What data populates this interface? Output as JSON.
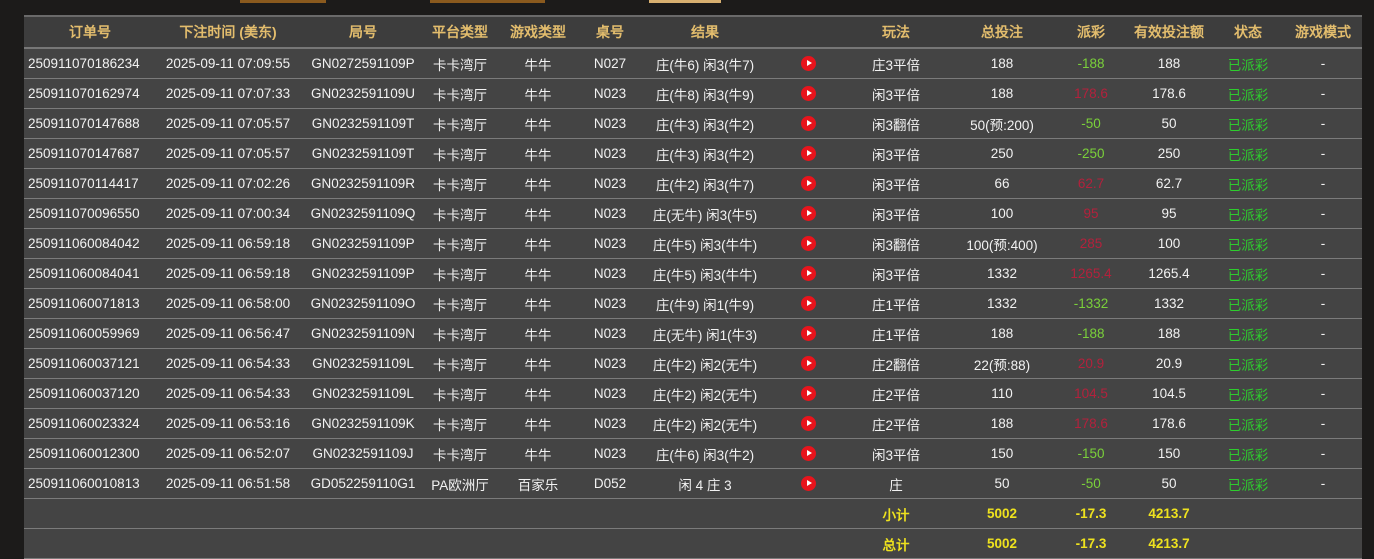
{
  "columns": [
    "订单号",
    "下注时间 (美东)",
    "局号",
    "平台类型",
    "游戏类型",
    "桌号",
    "结果",
    "",
    "玩法",
    "总投注",
    "派彩",
    "有效投注额",
    "状态",
    "游戏模式"
  ],
  "rows": [
    {
      "order": "250911070186234",
      "time": "2025-09-11 07:09:55",
      "round": "GN0272591109P",
      "platform": "卡卡湾厅",
      "game": "牛牛",
      "table": "N027",
      "result": "庄(牛6) 闲3(牛7)",
      "play": "庄3平倍",
      "bet": "188",
      "payout": "-188",
      "payout_sign": "neg",
      "valid": "188",
      "status": "已派彩",
      "mode": "-"
    },
    {
      "order": "250911070162974",
      "time": "2025-09-11 07:07:33",
      "round": "GN0232591109U",
      "platform": "卡卡湾厅",
      "game": "牛牛",
      "table": "N023",
      "result": "庄(牛8) 闲3(牛9)",
      "play": "闲3平倍",
      "bet": "188",
      "payout": "178.6",
      "payout_sign": "pos",
      "valid": "178.6",
      "status": "已派彩",
      "mode": "-"
    },
    {
      "order": "250911070147688",
      "time": "2025-09-11 07:05:57",
      "round": "GN0232591109T",
      "platform": "卡卡湾厅",
      "game": "牛牛",
      "table": "N023",
      "result": "庄(牛3) 闲3(牛2)",
      "play": "闲3翻倍",
      "bet": "50(预:200)",
      "payout": "-50",
      "payout_sign": "neg",
      "valid": "50",
      "status": "已派彩",
      "mode": "-"
    },
    {
      "order": "250911070147687",
      "time": "2025-09-11 07:05:57",
      "round": "GN0232591109T",
      "platform": "卡卡湾厅",
      "game": "牛牛",
      "table": "N023",
      "result": "庄(牛3) 闲3(牛2)",
      "play": "闲3平倍",
      "bet": "250",
      "payout": "-250",
      "payout_sign": "neg",
      "valid": "250",
      "status": "已派彩",
      "mode": "-"
    },
    {
      "order": "250911070114417",
      "time": "2025-09-11 07:02:26",
      "round": "GN0232591109R",
      "platform": "卡卡湾厅",
      "game": "牛牛",
      "table": "N023",
      "result": "庄(牛2) 闲3(牛7)",
      "play": "闲3平倍",
      "bet": "66",
      "payout": "62.7",
      "payout_sign": "pos",
      "valid": "62.7",
      "status": "已派彩",
      "mode": "-"
    },
    {
      "order": "250911070096550",
      "time": "2025-09-11 07:00:34",
      "round": "GN0232591109Q",
      "platform": "卡卡湾厅",
      "game": "牛牛",
      "table": "N023",
      "result": "庄(无牛) 闲3(牛5)",
      "play": "闲3平倍",
      "bet": "100",
      "payout": "95",
      "payout_sign": "pos",
      "valid": "95",
      "status": "已派彩",
      "mode": "-"
    },
    {
      "order": "250911060084042",
      "time": "2025-09-11 06:59:18",
      "round": "GN0232591109P",
      "platform": "卡卡湾厅",
      "game": "牛牛",
      "table": "N023",
      "result": "庄(牛5) 闲3(牛牛)",
      "play": "闲3翻倍",
      "bet": "100(预:400)",
      "payout": "285",
      "payout_sign": "pos",
      "valid": "100",
      "status": "已派彩",
      "mode": "-"
    },
    {
      "order": "250911060084041",
      "time": "2025-09-11 06:59:18",
      "round": "GN0232591109P",
      "platform": "卡卡湾厅",
      "game": "牛牛",
      "table": "N023",
      "result": "庄(牛5) 闲3(牛牛)",
      "play": "闲3平倍",
      "bet": "1332",
      "payout": "1265.4",
      "payout_sign": "pos",
      "valid": "1265.4",
      "status": "已派彩",
      "mode": "-"
    },
    {
      "order": "250911060071813",
      "time": "2025-09-11 06:58:00",
      "round": "GN0232591109O",
      "platform": "卡卡湾厅",
      "game": "牛牛",
      "table": "N023",
      "result": "庄(牛9) 闲1(牛9)",
      "play": "庄1平倍",
      "bet": "1332",
      "payout": "-1332",
      "payout_sign": "neg",
      "valid": "1332",
      "status": "已派彩",
      "mode": "-"
    },
    {
      "order": "250911060059969",
      "time": "2025-09-11 06:56:47",
      "round": "GN0232591109N",
      "platform": "卡卡湾厅",
      "game": "牛牛",
      "table": "N023",
      "result": "庄(无牛) 闲1(牛3)",
      "play": "庄1平倍",
      "bet": "188",
      "payout": "-188",
      "payout_sign": "neg",
      "valid": "188",
      "status": "已派彩",
      "mode": "-"
    },
    {
      "order": "250911060037121",
      "time": "2025-09-11 06:54:33",
      "round": "GN0232591109L",
      "platform": "卡卡湾厅",
      "game": "牛牛",
      "table": "N023",
      "result": "庄(牛2) 闲2(无牛)",
      "play": "庄2翻倍",
      "bet": "22(预:88)",
      "payout": "20.9",
      "payout_sign": "pos",
      "valid": "20.9",
      "status": "已派彩",
      "mode": "-"
    },
    {
      "order": "250911060037120",
      "time": "2025-09-11 06:54:33",
      "round": "GN0232591109L",
      "platform": "卡卡湾厅",
      "game": "牛牛",
      "table": "N023",
      "result": "庄(牛2) 闲2(无牛)",
      "play": "庄2平倍",
      "bet": "110",
      "payout": "104.5",
      "payout_sign": "pos",
      "valid": "104.5",
      "status": "已派彩",
      "mode": "-"
    },
    {
      "order": "250911060023324",
      "time": "2025-09-11 06:53:16",
      "round": "GN0232591109K",
      "platform": "卡卡湾厅",
      "game": "牛牛",
      "table": "N023",
      "result": "庄(牛2) 闲2(无牛)",
      "play": "庄2平倍",
      "bet": "188",
      "payout": "178.6",
      "payout_sign": "pos",
      "valid": "178.6",
      "status": "已派彩",
      "mode": "-"
    },
    {
      "order": "250911060012300",
      "time": "2025-09-11 06:52:07",
      "round": "GN0232591109J",
      "platform": "卡卡湾厅",
      "game": "牛牛",
      "table": "N023",
      "result": "庄(牛6) 闲3(牛2)",
      "play": "闲3平倍",
      "bet": "150",
      "payout": "-150",
      "payout_sign": "neg",
      "valid": "150",
      "status": "已派彩",
      "mode": "-"
    },
    {
      "order": "250911060010813",
      "time": "2025-09-11 06:51:58",
      "round": "GD052259110G1",
      "platform": "PA欧洲厅",
      "game": "百家乐",
      "table": "D052",
      "result": "闲 4 庄 3",
      "play": "庄",
      "bet": "50",
      "payout": "-50",
      "payout_sign": "neg",
      "valid": "50",
      "status": "已派彩",
      "mode": "-"
    }
  ],
  "subtotal": {
    "label": "小计",
    "bet": "5002",
    "payout": "-17.3",
    "valid": "4213.7"
  },
  "total": {
    "label": "总计",
    "bet": "5002",
    "payout": "-17.3",
    "valid": "4213.7"
  },
  "colors": {
    "header_text": "#e3bd6d",
    "loss": "#7ad03a",
    "win": "#b3213c",
    "status": "#2ecc2e",
    "sum": "#eee21e",
    "play_icon": "#e8141c"
  }
}
